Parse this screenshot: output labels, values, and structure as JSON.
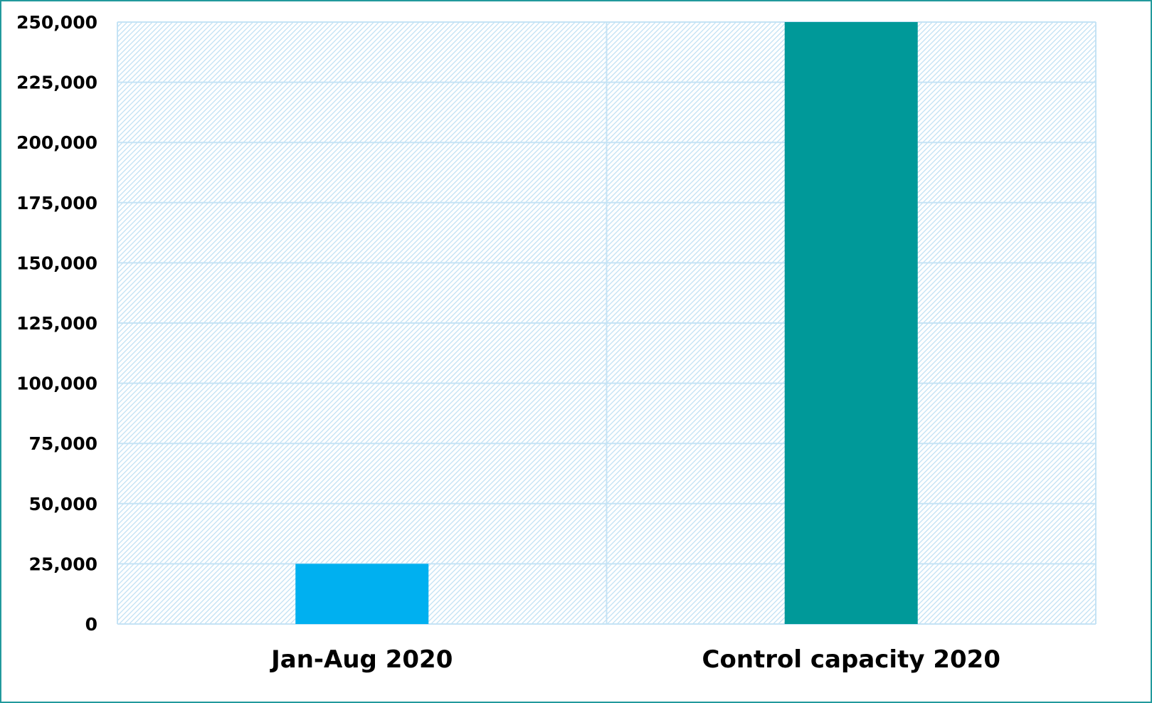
{
  "chart_data": {
    "type": "bar",
    "categories": [
      "Jan-Aug 2020",
      "Control capacity 2020"
    ],
    "values": [
      25000,
      250000
    ],
    "bar_colors": [
      "#00b0f0",
      "#009999"
    ],
    "ylim": [
      0,
      250000
    ],
    "yticks": [
      "0",
      "25,000",
      "50,000",
      "75,000",
      "100,000",
      "125,000",
      "150,000",
      "175,000",
      "200,000",
      "225,000",
      "250,000"
    ],
    "grid": true,
    "grid_color": "#c5e3f5",
    "background": "hatched light blue",
    "frame_color": "#22999c"
  }
}
